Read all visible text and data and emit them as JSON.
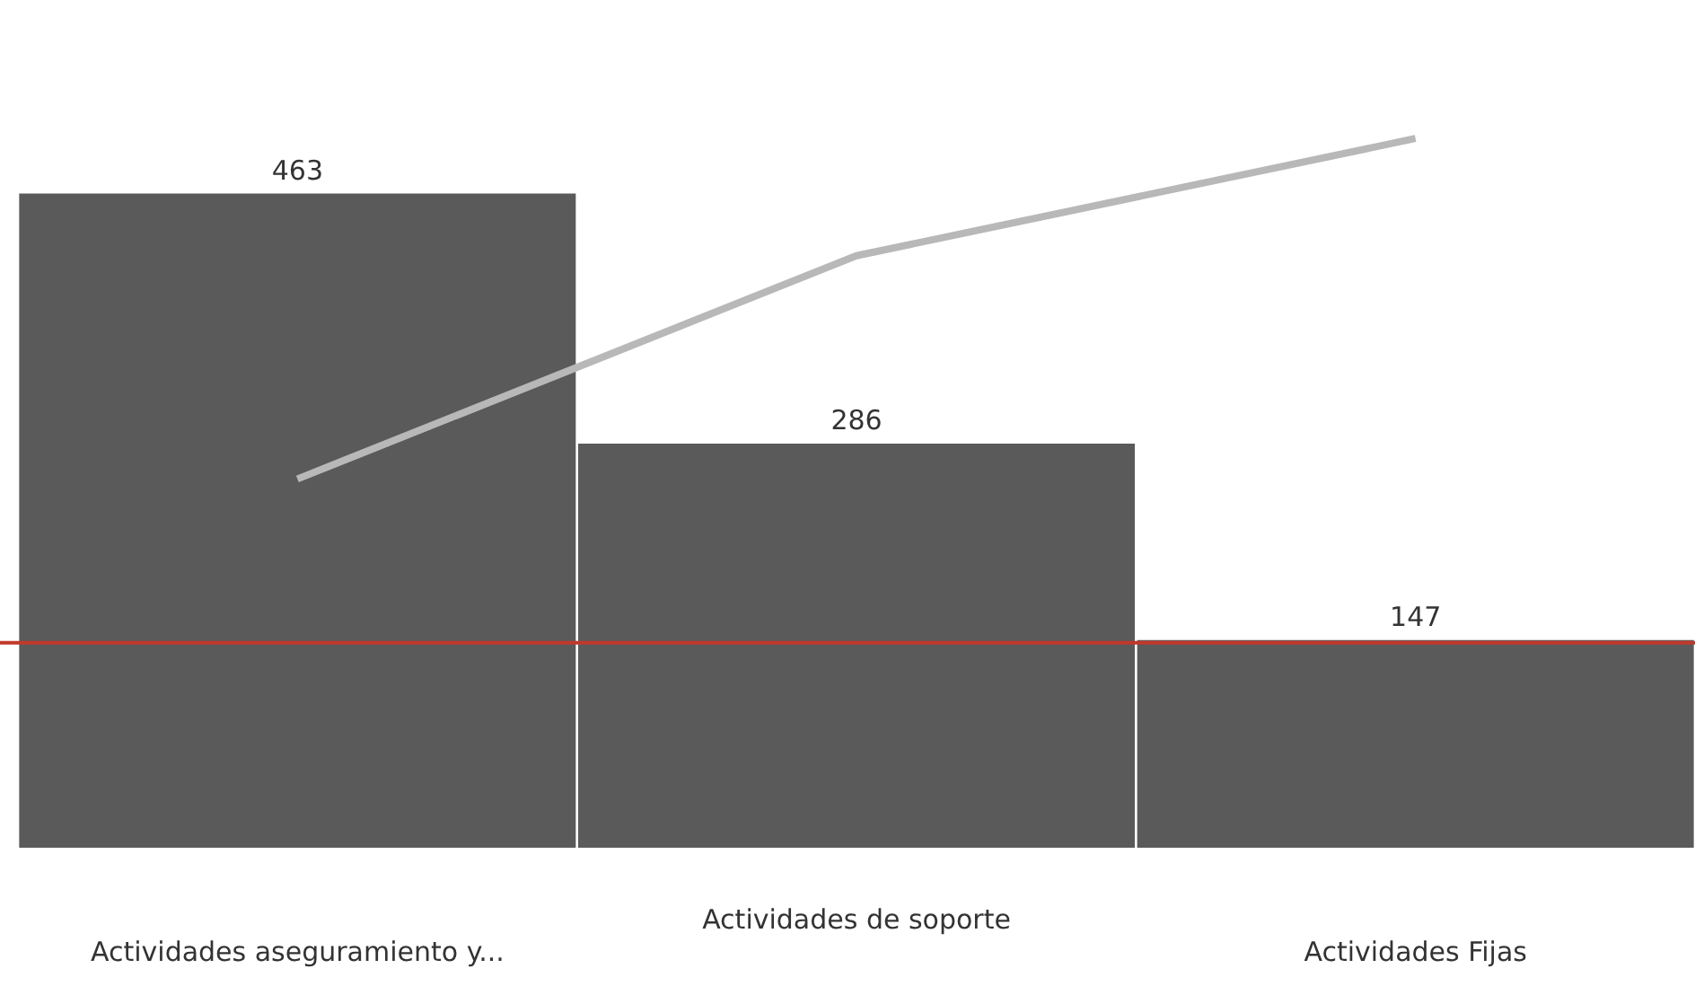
{
  "chart_data": {
    "type": "bar",
    "categories": [
      "Actividades aseguramiento y...",
      "Actividades de soporte",
      "Actividades Fijas"
    ],
    "series": [
      {
        "color": "#5a5a5a",
        "values": [
          463,
          286,
          147
        ],
        "value_labels": [
          "463",
          "286",
          "147"
        ]
      },
      {
        "type": "line",
        "color": "#b8b8b8",
        "values": [
          261,
          419,
          502
        ],
        "marker": "none"
      }
    ],
    "tick_labels": "x",
    "grid": false,
    "legend": false,
    "ref_lines": [
      {
        "axis": "y",
        "value": 145,
        "color": "#c0392b"
      }
    ]
  }
}
